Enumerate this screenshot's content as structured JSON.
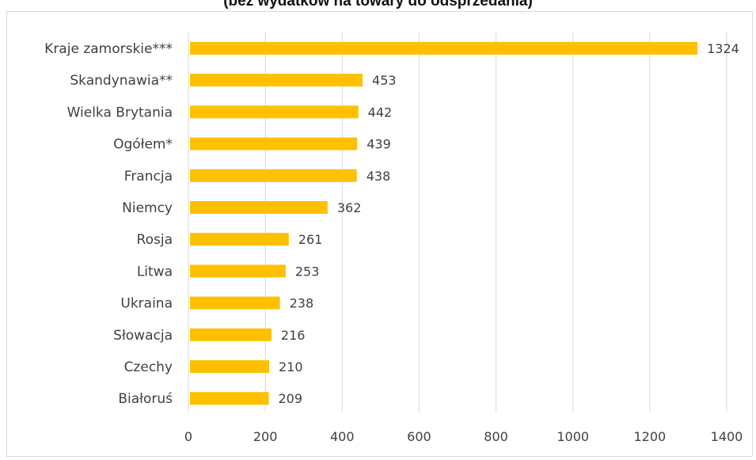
{
  "chart_data": {
    "type": "bar",
    "orientation": "horizontal",
    "title": "(bez wydatków na towary do odsprzedania)",
    "categories": [
      "Kraje zamorskie***",
      "Skandynawia**",
      "Wielka Brytania",
      "Ogółem*",
      "Francja",
      "Niemcy",
      "Rosja",
      "Litwa",
      "Ukraina",
      "Słowacja",
      "Czechy",
      "Białoruś"
    ],
    "values": [
      1324,
      453,
      442,
      439,
      438,
      362,
      261,
      253,
      238,
      216,
      210,
      209
    ],
    "data_labels": [
      "1324",
      "453",
      "442",
      "439",
      "438",
      "362",
      "261",
      "253",
      "238",
      "216",
      "210",
      "209"
    ],
    "xlim": [
      0,
      1400
    ],
    "x_ticks": [
      "0",
      "200",
      "400",
      "600",
      "800",
      "1000",
      "1200",
      "1400"
    ],
    "grid": "vertical",
    "legend": "none",
    "bar_color": "#ffc000",
    "grid_color": "#d9d9d9"
  }
}
